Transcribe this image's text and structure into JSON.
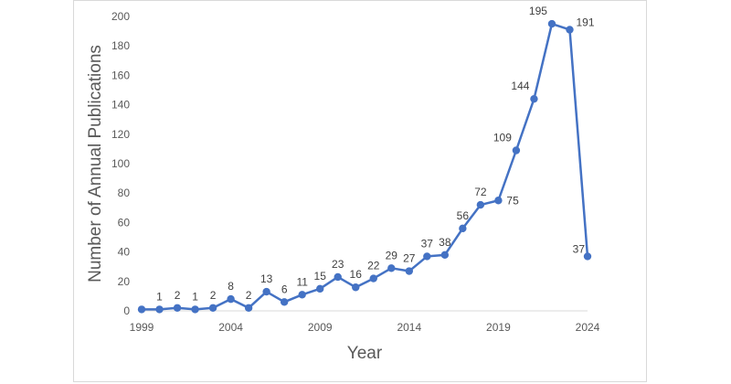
{
  "chart_data": {
    "type": "line",
    "title": "",
    "xlabel": "Year",
    "ylabel": "Number of Annual Publications",
    "xlim": [
      1999,
      2024
    ],
    "ylim": [
      0,
      200
    ],
    "x_ticks": [
      1999,
      2004,
      2009,
      2014,
      2019,
      2024
    ],
    "y_ticks": [
      0,
      20,
      40,
      60,
      80,
      100,
      120,
      140,
      160,
      180,
      200
    ],
    "grid": false,
    "legend": "none",
    "series": [
      {
        "color": "#4472c4",
        "points": [
          {
            "x": 1999,
            "y": 1,
            "label": ""
          },
          {
            "x": 2000,
            "y": 1,
            "label": "1"
          },
          {
            "x": 2001,
            "y": 2,
            "label": "2"
          },
          {
            "x": 2002,
            "y": 1,
            "label": "1"
          },
          {
            "x": 2003,
            "y": 2,
            "label": "2"
          },
          {
            "x": 2004,
            "y": 8,
            "label": "8"
          },
          {
            "x": 2005,
            "y": 2,
            "label": "2"
          },
          {
            "x": 2006,
            "y": 13,
            "label": "13"
          },
          {
            "x": 2007,
            "y": 6,
            "label": "6"
          },
          {
            "x": 2008,
            "y": 11,
            "label": "11"
          },
          {
            "x": 2009,
            "y": 15,
            "label": "15"
          },
          {
            "x": 2010,
            "y": 23,
            "label": "23"
          },
          {
            "x": 2011,
            "y": 16,
            "label": "16"
          },
          {
            "x": 2012,
            "y": 22,
            "label": "22"
          },
          {
            "x": 2013,
            "y": 29,
            "label": "29"
          },
          {
            "x": 2014,
            "y": 27,
            "label": "27"
          },
          {
            "x": 2015,
            "y": 37,
            "label": "37"
          },
          {
            "x": 2016,
            "y": 38,
            "label": "38"
          },
          {
            "x": 2017,
            "y": 56,
            "label": "56"
          },
          {
            "x": 2018,
            "y": 72,
            "label": "72"
          },
          {
            "x": 2019,
            "y": 75,
            "label": "75"
          },
          {
            "x": 2020,
            "y": 109,
            "label": "109"
          },
          {
            "x": 2021,
            "y": 144,
            "label": "144"
          },
          {
            "x": 2022,
            "y": 195,
            "label": "195"
          },
          {
            "x": 2023,
            "y": 191,
            "label": "191"
          },
          {
            "x": 2024,
            "y": 37,
            "label": "37"
          }
        ]
      }
    ]
  }
}
